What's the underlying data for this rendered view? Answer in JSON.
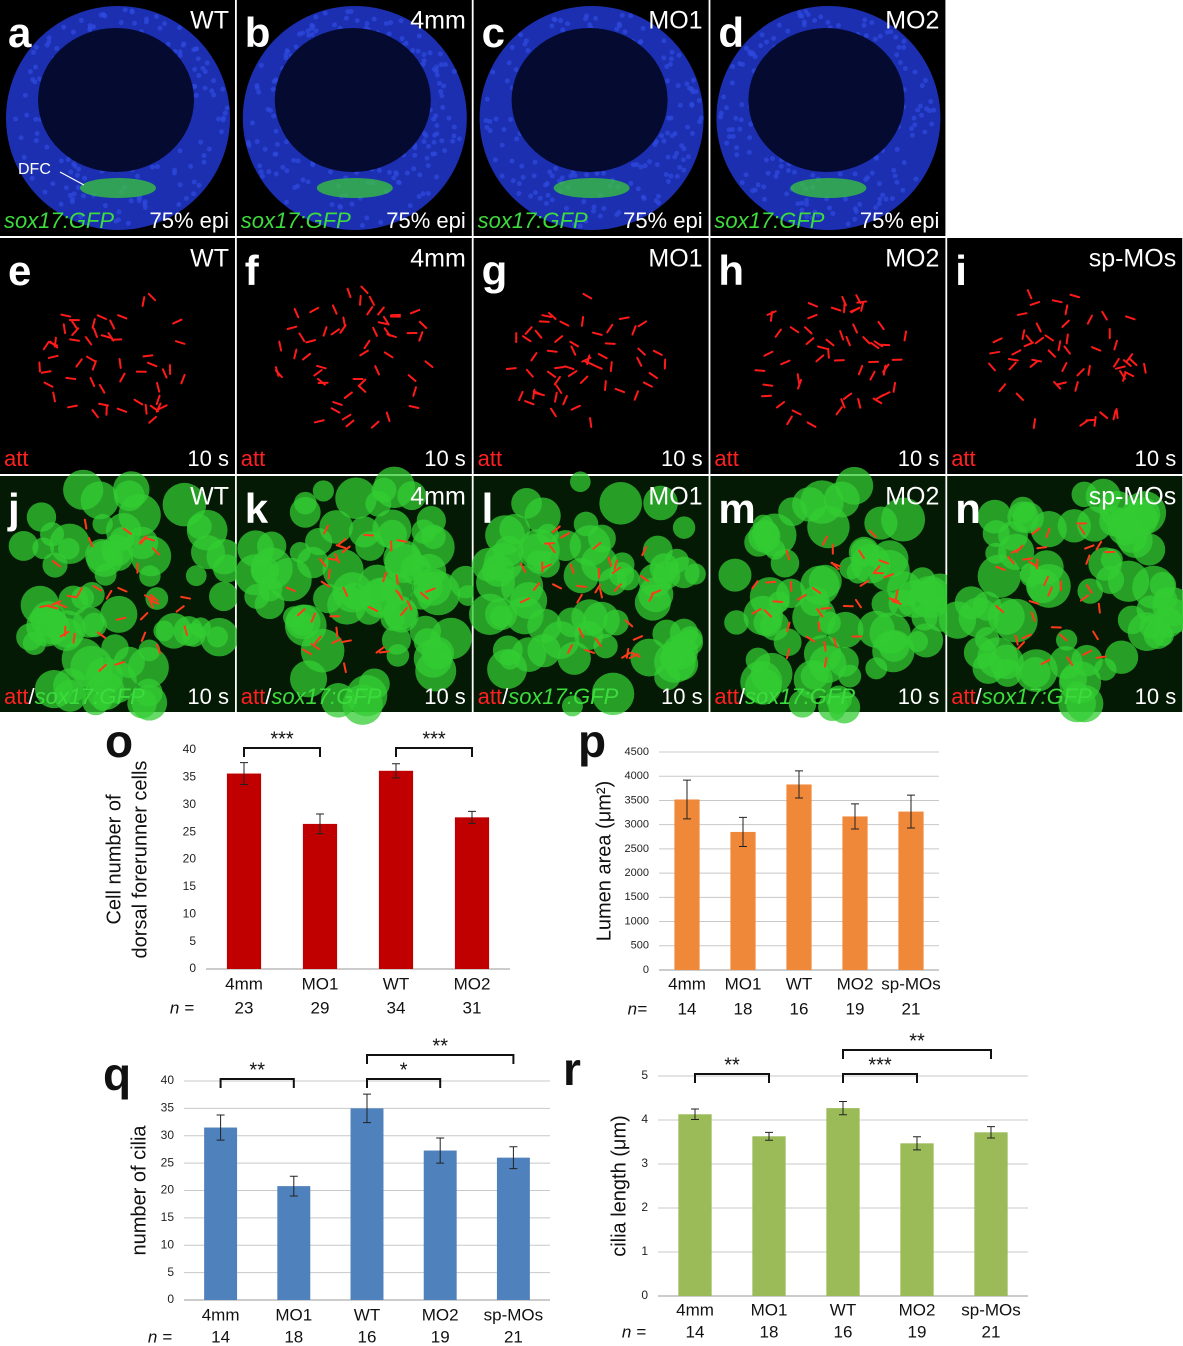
{
  "panels": {
    "rows": [
      [
        {
          "letter": "a",
          "label": "WT",
          "stain": [
            {
              "text": "sox17:GFP",
              "color": "#3ddc3d",
              "italic": true
            }
          ],
          "stage": "75% epi",
          "annotation": "DFC"
        },
        {
          "letter": "b",
          "label": "4mm",
          "stain": [
            {
              "text": "sox17:GFP",
              "color": "#3ddc3d",
              "italic": true
            }
          ],
          "stage": "75% epi"
        },
        {
          "letter": "c",
          "label": "MO1",
          "stain": [
            {
              "text": "sox17:GFP",
              "color": "#3ddc3d",
              "italic": true
            }
          ],
          "stage": "75% epi"
        },
        {
          "letter": "d",
          "label": "MO2",
          "stain": [
            {
              "text": "sox17:GFP",
              "color": "#3ddc3d",
              "italic": true
            }
          ],
          "stage": "75% epi"
        }
      ],
      [
        {
          "letter": "e",
          "label": "WT",
          "stain": [
            {
              "text": "att",
              "color": "#ff2020",
              "italic": false
            }
          ],
          "stage": "10 s"
        },
        {
          "letter": "f",
          "label": "4mm",
          "stain": [
            {
              "text": "att",
              "color": "#ff2020",
              "italic": false
            }
          ],
          "stage": "10 s"
        },
        {
          "letter": "g",
          "label": "MO1",
          "stain": [
            {
              "text": "att",
              "color": "#ff2020",
              "italic": false
            }
          ],
          "stage": "10 s"
        },
        {
          "letter": "h",
          "label": "MO2",
          "stain": [
            {
              "text": "att",
              "color": "#ff2020",
              "italic": false
            }
          ],
          "stage": "10 s"
        },
        {
          "letter": "i",
          "label": "sp-MOs",
          "stain": [
            {
              "text": "att",
              "color": "#ff2020",
              "italic": false
            }
          ],
          "stage": "10 s"
        }
      ],
      [
        {
          "letter": "j",
          "label": "WT",
          "stain": [
            {
              "text": "att",
              "color": "#ff2020",
              "italic": false
            },
            {
              "text": "/",
              "color": "#ffffff",
              "italic": false
            },
            {
              "text": "sox17:GFP",
              "color": "#3ddc3d",
              "italic": true
            }
          ],
          "stage": "10 s"
        },
        {
          "letter": "k",
          "label": "4mm",
          "stain": [
            {
              "text": "att",
              "color": "#ff2020",
              "italic": false
            },
            {
              "text": "/",
              "color": "#ffffff",
              "italic": false
            },
            {
              "text": "sox17:GFP",
              "color": "#3ddc3d",
              "italic": true
            }
          ],
          "stage": "10 s"
        },
        {
          "letter": "l",
          "label": "MO1",
          "stain": [
            {
              "text": "att",
              "color": "#ff2020",
              "italic": false
            },
            {
              "text": "/",
              "color": "#ffffff",
              "italic": false
            },
            {
              "text": "sox17:GFP",
              "color": "#3ddc3d",
              "italic": true
            }
          ],
          "stage": "10 s"
        },
        {
          "letter": "m",
          "label": "MO2",
          "stain": [
            {
              "text": "att",
              "color": "#ff2020",
              "italic": false
            },
            {
              "text": "/",
              "color": "#ffffff",
              "italic": false
            },
            {
              "text": "sox17:GFP",
              "color": "#3ddc3d",
              "italic": true
            }
          ],
          "stage": "10 s"
        },
        {
          "letter": "n",
          "label": "sp-MOs",
          "stain": [
            {
              "text": "att",
              "color": "#ff2020",
              "italic": false
            },
            {
              "text": "/",
              "color": "#ffffff",
              "italic": false
            },
            {
              "text": "sox17:GFP",
              "color": "#3ddc3d",
              "italic": true
            }
          ],
          "stage": "10 s"
        }
      ]
    ]
  },
  "chart_data": [
    {
      "type": "bar",
      "panel": "o",
      "ylabel": [
        "Cell number of",
        "dorsal forerunner cells"
      ],
      "categories": [
        "4mm",
        "MO1",
        "WT",
        "MO2"
      ],
      "n_label": "n =",
      "n": [
        23,
        29,
        34,
        31
      ],
      "values": [
        35.7,
        26.5,
        36.2,
        27.7
      ],
      "errors": [
        2.0,
        1.8,
        1.3,
        1.1
      ],
      "color": "#c00000",
      "ylim": [
        0,
        40
      ],
      "yticks": [
        0,
        5,
        10,
        15,
        20,
        25,
        30,
        35,
        40
      ],
      "grid": false,
      "significance": [
        {
          "pair": [
            "4mm",
            "MO1"
          ],
          "label": "***"
        },
        {
          "pair": [
            "WT",
            "MO2"
          ],
          "label": "***"
        }
      ]
    },
    {
      "type": "bar",
      "panel": "p",
      "ylabel": [
        "Lumen area (μm²)"
      ],
      "categories": [
        "4mm",
        "MO1",
        "WT",
        "MO2",
        "sp-MOs"
      ],
      "n_label": "n=",
      "n": [
        14,
        18,
        16,
        19,
        21
      ],
      "values": [
        3520,
        2850,
        3830,
        3170,
        3270
      ],
      "errors": [
        400,
        300,
        280,
        260,
        340
      ],
      "color": "#f0883a",
      "ylim": [
        0,
        4500
      ],
      "yticks": [
        0,
        500,
        1000,
        1500,
        2000,
        2500,
        3000,
        3500,
        4000,
        4500
      ],
      "grid": true,
      "significance": []
    },
    {
      "type": "bar",
      "panel": "q",
      "ylabel": [
        "number of cilia"
      ],
      "categories": [
        "4mm",
        "MO1",
        "WT",
        "MO2",
        "sp-MOs"
      ],
      "n_label": "n =",
      "n": [
        14,
        18,
        16,
        19,
        21
      ],
      "values": [
        31.5,
        20.8,
        35.0,
        27.3,
        26.0
      ],
      "errors": [
        2.3,
        1.8,
        2.6,
        2.3,
        2.0
      ],
      "color": "#4f81bd",
      "ylim": [
        0,
        40
      ],
      "yticks": [
        0,
        5,
        10,
        15,
        20,
        25,
        30,
        35,
        40
      ],
      "grid": true,
      "significance": [
        {
          "pair": [
            "4mm",
            "MO1"
          ],
          "label": "**"
        },
        {
          "pair": [
            "WT",
            "MO2"
          ],
          "label": "*"
        },
        {
          "pair": [
            "WT",
            "sp-MOs"
          ],
          "label": "**"
        }
      ]
    },
    {
      "type": "bar",
      "panel": "r",
      "ylabel": [
        "cilia length (μm)"
      ],
      "categories": [
        "4mm",
        "MO1",
        "WT",
        "MO2",
        "sp-MOs"
      ],
      "n_label": "n =",
      "n": [
        14,
        18,
        16,
        19,
        21
      ],
      "values": [
        4.13,
        3.63,
        4.27,
        3.47,
        3.72
      ],
      "errors": [
        0.12,
        0.09,
        0.15,
        0.15,
        0.13
      ],
      "color": "#9bbb59",
      "ylim": [
        0,
        5
      ],
      "yticks": [
        0,
        1,
        2,
        3,
        4,
        5
      ],
      "grid": true,
      "significance": [
        {
          "pair": [
            "4mm",
            "MO1"
          ],
          "label": "**"
        },
        {
          "pair": [
            "WT",
            "MO2"
          ],
          "label": "***"
        },
        {
          "pair": [
            "WT",
            "sp-MOs"
          ],
          "label": "**"
        }
      ]
    }
  ]
}
